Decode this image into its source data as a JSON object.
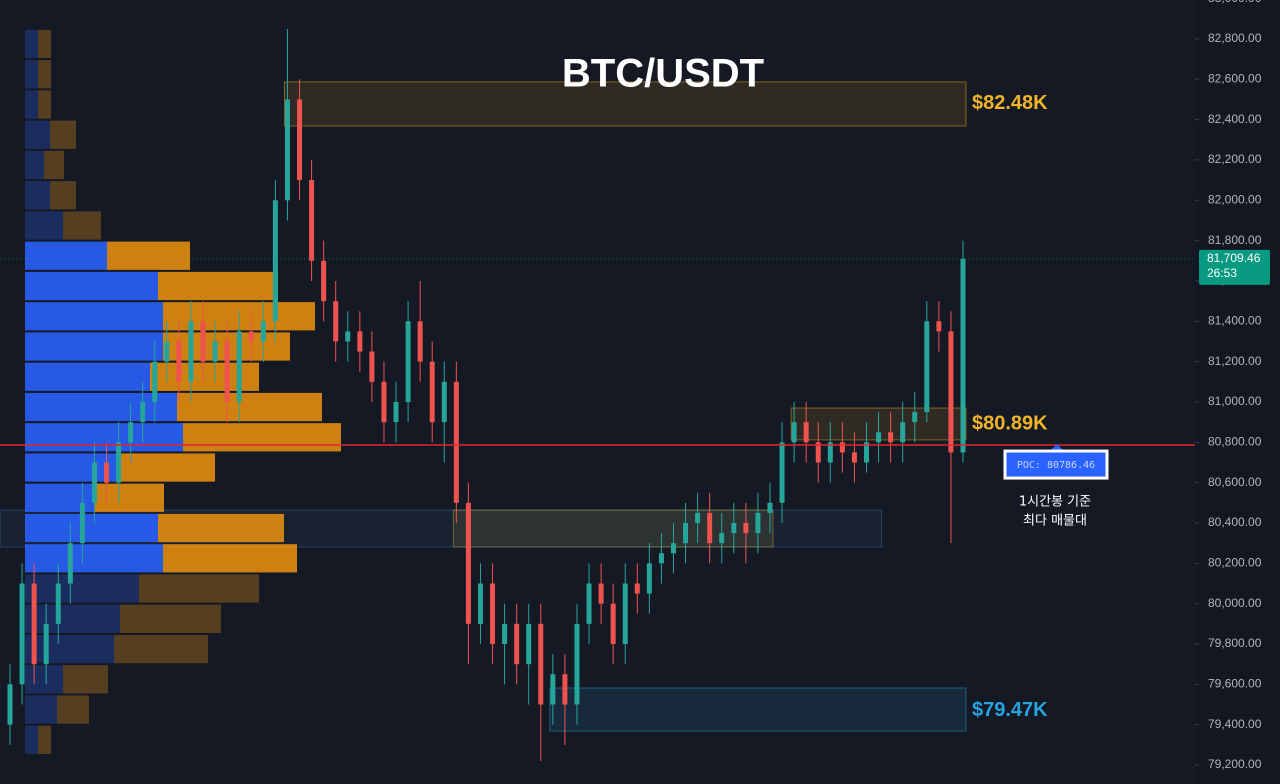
{
  "chart_data": {
    "type": "candlestick",
    "title": "BTC/USDT",
    "up_color": "#26a69a",
    "down_color": "#ef5350",
    "grid": false,
    "ylim": [
      79106,
      82993
    ],
    "yticks": [
      {
        "value": 79200,
        "label": "79,200.00"
      },
      {
        "value": 79400,
        "label": "79,400.00"
      },
      {
        "value": 79600,
        "label": "79,600.00"
      },
      {
        "value": 79800,
        "label": "79,800.00"
      },
      {
        "value": 80000,
        "label": "80,000.00"
      },
      {
        "value": 80200,
        "label": "80,200.00"
      },
      {
        "value": 80400,
        "label": "80,400.00"
      },
      {
        "value": 80600,
        "label": "80,600.00"
      },
      {
        "value": 80800,
        "label": "80,800.00"
      },
      {
        "value": 81000,
        "label": "81,000.00"
      },
      {
        "value": 81200,
        "label": "81,200.00"
      },
      {
        "value": 81400,
        "label": "81,400.00"
      },
      {
        "value": 81600,
        "label": "81,600.00"
      },
      {
        "value": 81800,
        "label": "81,800.00"
      },
      {
        "value": 82000,
        "label": "82,000.00"
      },
      {
        "value": 82200,
        "label": "82,200.00"
      },
      {
        "value": 82400,
        "label": "82,400.00"
      },
      {
        "value": 82600,
        "label": "82,600.00"
      },
      {
        "value": 82800,
        "label": "82,800.00"
      },
      {
        "value": 83000,
        "label": "83,000.00"
      }
    ],
    "open": [
      79400,
      79600,
      80100,
      79700,
      79900,
      80100,
      80300,
      80500,
      80700,
      80600,
      80800,
      80900,
      81000,
      81200,
      81300,
      81100,
      81400,
      81200,
      81300,
      81000,
      81350,
      81300,
      81400,
      82000,
      82500,
      82100,
      81700,
      81500,
      81300,
      81350,
      81250,
      81100,
      80900,
      81000,
      81400,
      81200,
      80900,
      81100,
      80500,
      79900,
      80100,
      79800,
      79900,
      79700,
      79900,
      79500,
      79650,
      79500,
      79900,
      80100,
      80000,
      79800,
      80100,
      80050,
      80200,
      80250,
      80300,
      80400,
      80450,
      80300,
      80350,
      80400,
      80350,
      80450,
      80500,
      80800,
      80900,
      80800,
      80700,
      80800,
      80750,
      80700,
      80800,
      80850,
      80800,
      80900,
      80950,
      81400,
      81350,
      80750
    ],
    "high": [
      79700,
      80200,
      80200,
      80000,
      80200,
      80400,
      80600,
      80800,
      80800,
      80900,
      81000,
      81100,
      81300,
      81400,
      81400,
      81500,
      81500,
      81400,
      81400,
      81450,
      81450,
      81500,
      82100,
      82850,
      82600,
      82200,
      81800,
      81600,
      81450,
      81450,
      81350,
      81200,
      81100,
      81500,
      81600,
      81300,
      81200,
      81200,
      80600,
      80200,
      80200,
      80000,
      80000,
      80000,
      80000,
      79750,
      79750,
      80000,
      80200,
      80200,
      80100,
      80200,
      80200,
      80300,
      80350,
      80400,
      80500,
      80550,
      80550,
      80450,
      80500,
      80500,
      80550,
      80600,
      80900,
      81000,
      81000,
      80900,
      80900,
      80900,
      80850,
      80900,
      80950,
      80950,
      81000,
      81050,
      81500,
      81500,
      81450,
      81800
    ],
    "low": [
      79300,
      79500,
      79600,
      79600,
      79800,
      80000,
      80200,
      80400,
      80500,
      80500,
      80700,
      80800,
      80900,
      81100,
      81000,
      81000,
      81100,
      81100,
      80900,
      80900,
      81200,
      81200,
      81300,
      81900,
      82000,
      81600,
      81400,
      81200,
      81200,
      81150,
      81000,
      80800,
      80800,
      80900,
      81100,
      80800,
      80700,
      80400,
      79700,
      79800,
      79700,
      79600,
      79600,
      79500,
      79220,
      79400,
      79300,
      79400,
      79800,
      79900,
      79700,
      79700,
      79950,
      79950,
      80100,
      80150,
      80200,
      80300,
      80200,
      80200,
      80250,
      80200,
      80250,
      80350,
      80400,
      80700,
      80700,
      80600,
      80600,
      80650,
      80600,
      80650,
      80700,
      80700,
      80700,
      80800,
      80900,
      81250,
      80300,
      80700
    ],
    "close": [
      79600,
      80100,
      79700,
      79900,
      80100,
      80300,
      80500,
      80700,
      80600,
      80800,
      80900,
      81000,
      81200,
      81300,
      81100,
      81400,
      81200,
      81300,
      81000,
      81350,
      81300,
      81400,
      82000,
      82500,
      82100,
      81700,
      81500,
      81300,
      81350,
      81250,
      81100,
      80900,
      81000,
      81400,
      81200,
      80900,
      81100,
      80500,
      79900,
      80100,
      79800,
      79900,
      79700,
      79900,
      79500,
      79650,
      79500,
      79900,
      80100,
      80000,
      79800,
      80100,
      80050,
      80200,
      80250,
      80300,
      80400,
      80450,
      80300,
      80350,
      80400,
      80350,
      80450,
      80500,
      80800,
      80900,
      80800,
      80700,
      80800,
      80750,
      80700,
      80800,
      80850,
      80800,
      80900,
      80950,
      81400,
      81350,
      80750,
      81709.46
    ],
    "last_price": {
      "value": 81709.46,
      "label": "81,709.46"
    },
    "countdown": "26:53",
    "profile": {
      "bins": [
        82850,
        82700,
        82550,
        82400,
        82250,
        82100,
        81950,
        81800,
        81650,
        81500,
        81350,
        81200,
        81050,
        80900,
        80750,
        80600,
        80450,
        80300,
        80150,
        80000,
        79850,
        79700,
        79550,
        79400,
        79250
      ],
      "buy": [
        13,
        13,
        13,
        25,
        19,
        25,
        38,
        82,
        133,
        138,
        138,
        125,
        152,
        158,
        95,
        70,
        133,
        138,
        114,
        95,
        89,
        38,
        32,
        13
      ],
      "sell": [
        13,
        13,
        13,
        26,
        20,
        26,
        38,
        83,
        120,
        152,
        127,
        109,
        145,
        158,
        95,
        69,
        126,
        134,
        120,
        101,
        94,
        45,
        32,
        13
      ],
      "buy_color": "#2962ff",
      "sell_color": "#e8900f",
      "buy_dim_color": "#1c2f66",
      "sell_dim_color": "#5e4420",
      "value_area": [
        80150,
        81800
      ]
    },
    "poc": {
      "value": 80786.46,
      "label": "POC: 80786.46"
    },
    "poc_color": "#e0262f",
    "annotation": [
      "1시간봉 기준",
      "최다 매물대"
    ],
    "zones": [
      {
        "top": 82587,
        "bottom": 82368,
        "from": 23,
        "to": 79,
        "value": 82480,
        "label": "$82.48K",
        "color": "#f0b429"
      },
      {
        "top": 80970,
        "bottom": 80812,
        "from": 65,
        "to": 79,
        "value": 80890,
        "label": "$80.89K",
        "color": "#f0b429"
      },
      {
        "top": 80464,
        "bottom": 80281,
        "from": 0,
        "to": 72,
        "color": "#3a6ea5"
      },
      {
        "top": 80464,
        "bottom": 80281,
        "from": 37,
        "to": 63,
        "color": "#c9b03a"
      },
      {
        "top": 79582,
        "bottom": 79368,
        "from": 45,
        "to": 79,
        "value": 79470,
        "label": "$79.47K",
        "color": "#29a3e0"
      }
    ]
  }
}
